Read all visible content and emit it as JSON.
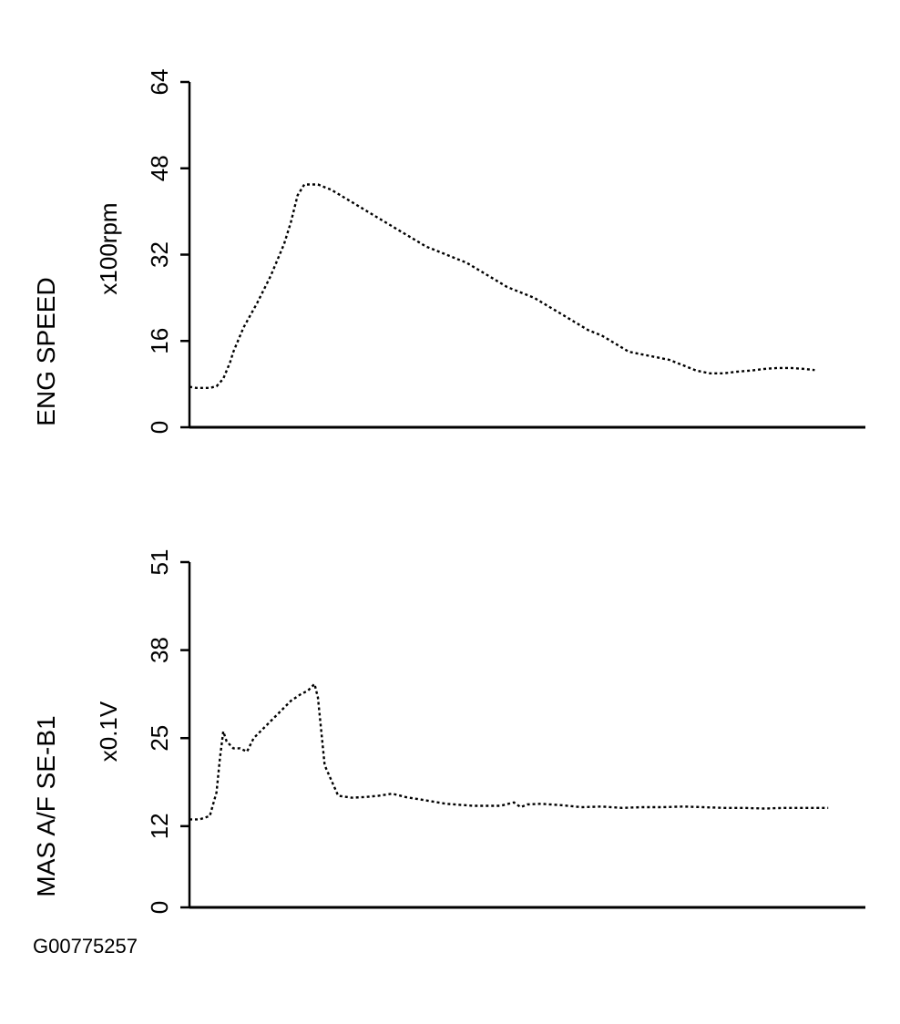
{
  "figure_id": "G00775257",
  "chart_data": [
    {
      "type": "line",
      "ylabel": "ENG SPEED",
      "unit": "x100rpm",
      "ylim": [
        0,
        64
      ],
      "yticks": [
        "0",
        "16",
        "32",
        "48",
        "64"
      ],
      "series": [
        {
          "x": [
            0,
            1,
            2,
            3,
            4,
            5,
            6,
            6.5,
            8,
            10,
            12,
            13,
            14,
            15,
            16,
            17,
            19,
            21,
            23,
            25,
            27,
            29,
            31,
            33,
            35,
            37,
            39,
            41,
            43,
            45,
            47,
            49,
            51,
            53,
            55,
            57,
            59,
            61,
            63,
            65,
            67,
            69,
            71,
            73,
            75,
            77,
            79,
            81,
            83,
            85,
            87,
            89,
            91,
            92.5
          ],
          "values": [
            7.5,
            7.3,
            7.3,
            7.3,
            7.6,
            9.0,
            12.0,
            14.0,
            18.5,
            23.0,
            28.0,
            31.0,
            34.0,
            38.0,
            43.0,
            45.0,
            45.0,
            44.0,
            42.5,
            41.0,
            39.5,
            38.0,
            36.5,
            35.0,
            33.5,
            32.5,
            31.5,
            30.5,
            29.0,
            27.5,
            26.0,
            25.0,
            24.0,
            22.5,
            21.0,
            19.5,
            18.0,
            17.0,
            15.5,
            14.0,
            13.5,
            13.0,
            12.5,
            11.5,
            10.5,
            10.0,
            10.0,
            10.3,
            10.5,
            10.8,
            11.0,
            11.0,
            10.8,
            10.6
          ]
        }
      ]
    },
    {
      "type": "line",
      "ylabel": "MAS A/F SE-B1",
      "unit": "x0.1V",
      "ylim": [
        0,
        51
      ],
      "yticks": [
        "0",
        "12",
        "25",
        "38",
        "51"
      ],
      "series": [
        {
          "x": [
            0,
            1.5,
            3,
            4,
            4.5,
            5,
            5.5,
            6.5,
            7.5,
            8.5,
            9.5,
            11,
            13,
            15,
            16.5,
            17.5,
            18.5,
            19,
            20,
            22,
            24,
            26,
            28,
            30,
            32,
            35,
            38,
            42,
            46,
            48,
            49,
            50,
            52,
            55,
            58,
            61,
            64,
            67,
            70,
            73,
            76,
            79,
            82,
            85,
            88,
            91,
            94.5
          ],
          "values": [
            13.0,
            13.0,
            13.5,
            17.0,
            22.0,
            26.0,
            24.5,
            23.5,
            23.5,
            23.0,
            25.0,
            26.5,
            28.5,
            30.5,
            31.5,
            32.0,
            33.0,
            31.0,
            21.0,
            16.5,
            16.2,
            16.3,
            16.5,
            16.8,
            16.3,
            15.8,
            15.3,
            15.0,
            15.0,
            15.5,
            14.8,
            15.2,
            15.3,
            15.1,
            14.8,
            14.9,
            14.7,
            14.8,
            14.8,
            14.9,
            14.8,
            14.7,
            14.7,
            14.6,
            14.7,
            14.7,
            14.7
          ]
        }
      ]
    }
  ]
}
